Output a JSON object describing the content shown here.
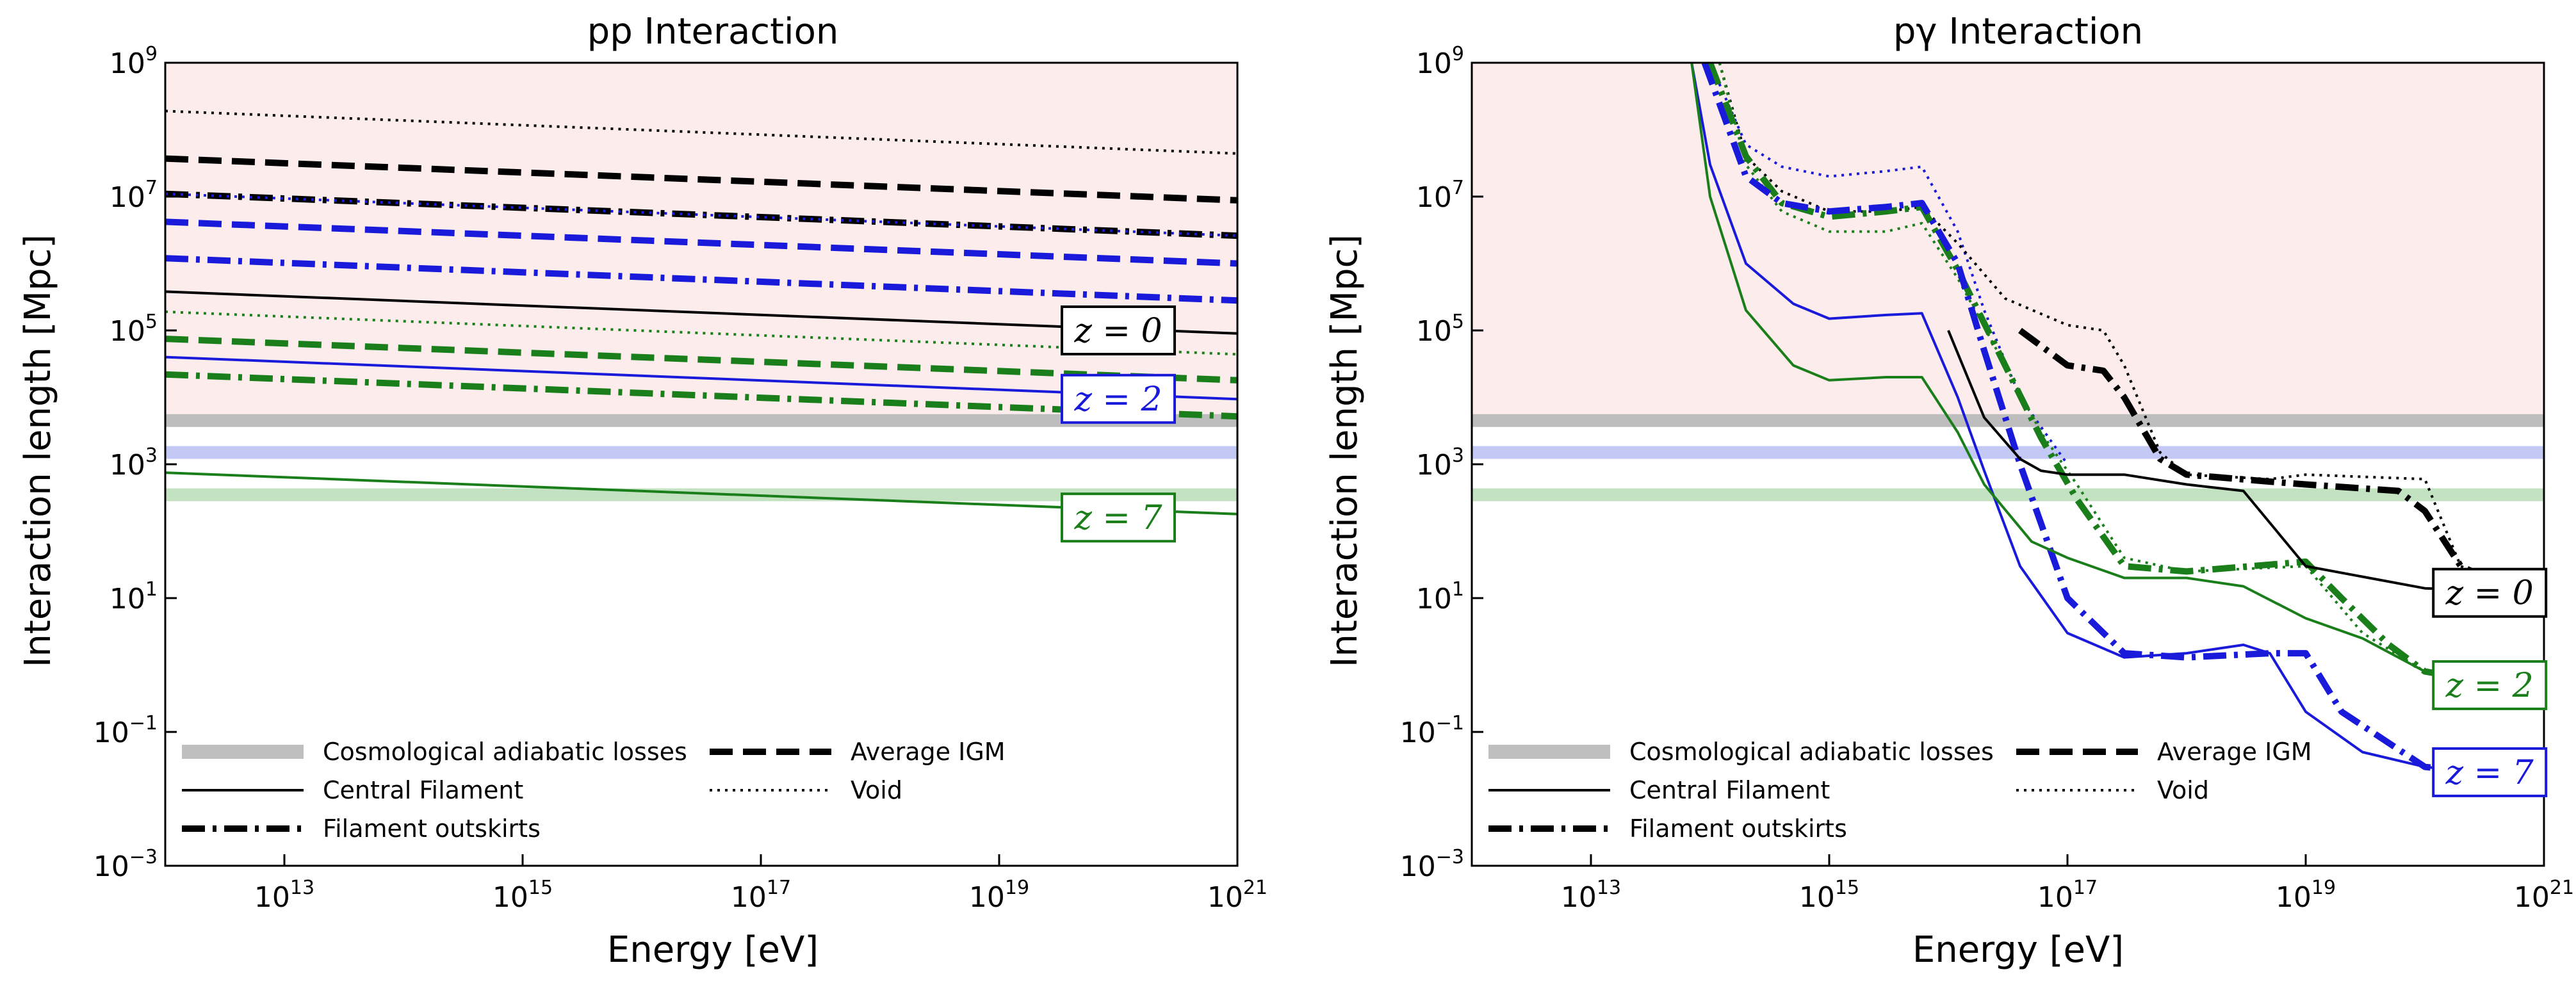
{
  "figure": {
    "shaded_region_color": "#fcecec",
    "colors": {
      "z0": "#000000",
      "z2": "#1a1adb",
      "z7": "#1a7f1a",
      "adiabatic": "#bfbfbf"
    }
  },
  "chart_data": [
    {
      "type": "line",
      "title": "pp Interaction",
      "xlabel": "Energy [eV]",
      "ylabel": "Interaction length [Mpc]",
      "x_scale": "log",
      "y_scale": "log",
      "xlim": [
        1000000000000.0,
        1e+21
      ],
      "ylim": [
        0.001,
        1000000000.0
      ],
      "x_ticks": [
        {
          "base": "10",
          "exp": "13",
          "v": 10000000000000.0
        },
        {
          "base": "10",
          "exp": "15",
          "v": 1000000000000000.0
        },
        {
          "base": "10",
          "exp": "17",
          "v": 1e+17
        },
        {
          "base": "10",
          "exp": "19",
          "v": 1e+19
        },
        {
          "base": "10",
          "exp": "21",
          "v": 1e+21
        }
      ],
      "y_ticks": [
        {
          "base": "10",
          "exp": "9",
          "v": 1000000000.0
        },
        {
          "base": "10",
          "exp": "7",
          "v": 10000000.0
        },
        {
          "base": "10",
          "exp": "5",
          "v": 100000.0
        },
        {
          "base": "10",
          "exp": "3",
          "v": 1000.0
        },
        {
          "base": "10",
          "exp": "1",
          "v": 10.0
        },
        {
          "base": "10",
          "exp": "−1",
          "v": 0.1
        },
        {
          "base": "10",
          "exp": "−3",
          "v": 0.001
        }
      ],
      "shaded_region": {
        "y_from": 4000,
        "y_to": 1000000000.0
      },
      "adiabatic_losses": [
        {
          "z": "0",
          "y": 4500,
          "color": "#bdbdbd"
        },
        {
          "z": "2",
          "y": 1500,
          "color": "#c3c8f4"
        },
        {
          "z": "7",
          "y": 350,
          "color": "#c2e2c2"
        }
      ],
      "z_labels": [
        {
          "text": "z = 0",
          "color": "#000000",
          "x": 1e+20,
          "y": 100000.0
        },
        {
          "text": "z = 2",
          "color": "#1a1adb",
          "x": 1e+20,
          "y": 9500.0
        },
        {
          "text": "z = 7",
          "color": "#1a7f1a",
          "x": 1e+20,
          "y": 160.0
        }
      ],
      "series": [
        {
          "z": "0",
          "environment": "Void",
          "color": "#000000",
          "x": [
            1000000000000.0,
            1e+21
          ],
          "y": [
            190000000.0,
            44000000.0
          ]
        },
        {
          "z": "0",
          "environment": "Average IGM",
          "color": "#000000",
          "x": [
            1000000000000.0,
            1e+21
          ],
          "y": [
            37000000.0,
            8800000.0
          ]
        },
        {
          "z": "0",
          "environment": "Filament outskirts",
          "color": "#000000",
          "x": [
            1000000000000.0,
            1e+21
          ],
          "y": [
            11000000.0,
            2600000.0
          ]
        },
        {
          "z": "0",
          "environment": "Central Filament",
          "color": "#000000",
          "x": [
            1000000000000.0,
            1e+21
          ],
          "y": [
            380000.0,
            90000.0
          ]
        },
        {
          "z": "2",
          "environment": "Void",
          "color": "#1a1adb",
          "x": [
            1000000000000.0,
            1e+21
          ],
          "y": [
            11000000.0,
            2600000.0
          ]
        },
        {
          "z": "2",
          "environment": "Average IGM",
          "color": "#1a1adb",
          "x": [
            1000000000000.0,
            1e+21
          ],
          "y": [
            4200000.0,
            1000000.0
          ]
        },
        {
          "z": "2",
          "environment": "Filament outskirts",
          "color": "#1a1adb",
          "x": [
            1000000000000.0,
            1e+21
          ],
          "y": [
            1200000.0,
            280000.0
          ]
        },
        {
          "z": "2",
          "environment": "Central Filament",
          "color": "#1a1adb",
          "x": [
            1000000000000.0,
            1e+21
          ],
          "y": [
            40000.0,
            9400.0
          ]
        },
        {
          "z": "7",
          "environment": "Void",
          "color": "#1a7f1a",
          "x": [
            1000000000000.0,
            1e+21
          ],
          "y": [
            190000.0,
            44000.0
          ]
        },
        {
          "z": "7",
          "environment": "Average IGM",
          "color": "#1a7f1a",
          "x": [
            1000000000000.0,
            1e+21
          ],
          "y": [
            75000.0,
            18000.0
          ]
        },
        {
          "z": "7",
          "environment": "Filament outskirts",
          "color": "#1a7f1a",
          "x": [
            1000000000000.0,
            1e+21
          ],
          "y": [
            22000.0,
            5200.0
          ]
        },
        {
          "z": "7",
          "environment": "Central Filament",
          "color": "#1a7f1a",
          "x": [
            1000000000000.0,
            1e+21
          ],
          "y": [
            750.0,
            180.0
          ]
        }
      ],
      "legend": {
        "placement": "lower-left",
        "entries": [
          {
            "label": "Cosmological adiabatic losses",
            "style": "band"
          },
          {
            "label": "Average IGM",
            "style": "dashed"
          },
          {
            "label": "Central Filament",
            "style": "solid"
          },
          {
            "label": "Void",
            "style": "dotted"
          },
          {
            "label": "Filament outskirts",
            "style": "dashdot"
          }
        ]
      }
    },
    {
      "type": "line",
      "title": "pγ Interaction",
      "xlabel": "Energy [eV]",
      "ylabel": "Interaction length [Mpc]",
      "x_scale": "log",
      "y_scale": "log",
      "xlim": [
        1000000000000.0,
        1e+21
      ],
      "ylim": [
        0.001,
        1000000000.0
      ],
      "x_ticks": [
        {
          "base": "10",
          "exp": "13",
          "v": 10000000000000.0
        },
        {
          "base": "10",
          "exp": "15",
          "v": 1000000000000000.0
        },
        {
          "base": "10",
          "exp": "17",
          "v": 1e+17
        },
        {
          "base": "10",
          "exp": "19",
          "v": 1e+19
        },
        {
          "base": "10",
          "exp": "21",
          "v": 1e+21
        }
      ],
      "y_ticks": [
        {
          "base": "10",
          "exp": "9",
          "v": 1000000000.0
        },
        {
          "base": "10",
          "exp": "7",
          "v": 10000000.0
        },
        {
          "base": "10",
          "exp": "5",
          "v": 100000.0
        },
        {
          "base": "10",
          "exp": "3",
          "v": 1000.0
        },
        {
          "base": "10",
          "exp": "1",
          "v": 10.0
        },
        {
          "base": "10",
          "exp": "−1",
          "v": 0.1
        },
        {
          "base": "10",
          "exp": "−3",
          "v": 0.001
        }
      ],
      "shaded_region": {
        "y_from": 4000,
        "y_to": 1000000000.0
      },
      "adiabatic_losses": [
        {
          "z": "0",
          "y": 4500,
          "color": "#bdbdbd"
        },
        {
          "z": "2",
          "y": 1500,
          "color": "#c3c8f4"
        },
        {
          "z": "7",
          "y": 350,
          "color": "#c2e2c2"
        }
      ],
      "z_labels": [
        {
          "text": "z = 0",
          "color": "#000000",
          "x": 3.5e+20,
          "y": 12
        },
        {
          "text": "z = 2",
          "color": "#1a7f1a",
          "x": 3.5e+20,
          "y": 0.5
        },
        {
          "text": "z = 7",
          "color": "#1a1adb",
          "x": 3.5e+20,
          "y": 0.025
        }
      ],
      "series": [
        {
          "z": "7",
          "environment": "Void",
          "color": "#1a1adb",
          "x": [
            100000000000000.0,
            200000000000000.0,
            400000000000000.0,
            1000000000000000.0,
            3000000000000000.0,
            6000000000000000.0,
            1.2e+16,
            2e+16,
            4e+16,
            1e+17
          ],
          "y": [
            1000000000.0,
            60000000.0,
            28000000.0,
            20000000.0,
            24000000.0,
            28000000.0,
            3000000.0,
            200000.0,
            10000.0,
            1000.0
          ]
        },
        {
          "z": "0",
          "environment": "Void",
          "color": "#000000",
          "x": [
            120000000000000.0,
            200000000000000.0,
            400000000000000.0,
            1000000000000000.0,
            3000000000000000.0,
            6000000000000000.0,
            1.2e+16,
            3e+16,
            1e+17,
            2e+17,
            3e+17,
            6e+17,
            1e+18,
            5e+18,
            1e+19,
            1e+20,
            2e+20,
            1e+21
          ],
          "y": [
            1000000000.0,
            40000000.0,
            12000000.0,
            6000000.0,
            6000000.0,
            7000000.0,
            2000000.0,
            300000.0,
            120000.0,
            100000.0,
            30000.0,
            1500.0,
            700.0,
            600.0,
            700.0,
            600.0,
            30,
            10
          ]
        },
        {
          "z": "0",
          "environment": "Filament outskirts",
          "color": "#000000",
          "x": [
            4e+16,
            1e+17,
            2e+17,
            3e+17,
            6e+17,
            1e+18,
            5e+18,
            1e+19,
            6e+19,
            1e+20,
            2e+20,
            1e+21
          ],
          "y": [
            100000.0,
            30000.0,
            25000.0,
            10000.0,
            1200.0,
            700.0,
            550.0,
            500.0,
            400.0,
            200.0,
            30,
            8
          ]
        },
        {
          "z": "2",
          "environment": "Void",
          "color": "#1a7f1a",
          "x": [
            120000000000000.0,
            200000000000000.0,
            400000000000000.0,
            1000000000000000.0,
            3000000000000000.0,
            6000000000000000.0,
            1.2e+16,
            3e+16,
            6e+16,
            1.2e+17,
            3e+17,
            1e+18,
            1e+19,
            3e+19,
            1e+20,
            5e+20,
            1e+21
          ],
          "y": [
            1000000000.0,
            30000000.0,
            6000000.0,
            3000000.0,
            3000000.0,
            4000000.0,
            600000.0,
            30000.0,
            3000.0,
            500.0,
            40,
            25,
            30,
            3,
            0.8,
            0.5,
            0.4
          ]
        },
        {
          "z": "2",
          "environment": "Filament outskirts",
          "color": "#1a7f1a",
          "x": [
            100000000000000.0,
            200000000000000.0,
            400000000000000.0,
            1000000000000000.0,
            3000000000000000.0,
            6000000000000000.0,
            1.2e+16,
            3e+16,
            6e+16,
            1.2e+17,
            3e+17,
            1e+18,
            1e+19,
            2e+19,
            5e+19,
            1e+20,
            1e+21
          ],
          "y": [
            1000000000.0,
            40000000.0,
            8000000.0,
            5000000.0,
            6000000.0,
            7000000.0,
            800000.0,
            30000.0,
            2500.0,
            300.0,
            30,
            25,
            35,
            10,
            2,
            0.8,
            0.4
          ]
        },
        {
          "z": "7",
          "environment": "Filament outskirts",
          "color": "#1a1adb",
          "x": [
            90000000000000.0,
            200000000000000.0,
            400000000000000.0,
            1000000000000000.0,
            3000000000000000.0,
            6000000000000000.0,
            1.2e+16,
            2e+16,
            4e+16,
            1e+17,
            3e+17,
            1e+18,
            5e+18,
            1e+19,
            2e+19,
            1e+20,
            1e+21
          ],
          "y": [
            1000000000.0,
            20000000.0,
            8000000.0,
            6000000.0,
            7000000.0,
            8000000.0,
            1000000.0,
            50000.0,
            1000.0,
            10,
            1.5,
            1.3,
            1.5,
            1.5,
            0.2,
            0.03,
            0.02
          ]
        },
        {
          "z": "0",
          "environment": "Central Filament",
          "color": "#000000",
          "x": [
            1e+16,
            2e+16,
            4e+16,
            6e+16,
            1e+17,
            3e+17,
            1e+18,
            3e+18,
            1e+19,
            1e+20,
            1e+21
          ],
          "y": [
            100000.0,
            5000.0,
            1200.0,
            800.0,
            700.0,
            700.0,
            500.0,
            400.0,
            30,
            14,
            12
          ]
        },
        {
          "z": "7",
          "environment": "Central Filament",
          "color": "#1a1adb",
          "x": [
            70000000000000.0,
            100000000000000.0,
            200000000000000.0,
            500000000000000.0,
            1000000000000000.0,
            3000000000000000.0,
            6000000000000000.0,
            1.2e+16,
            2e+16,
            4e+16,
            1e+17,
            3e+17,
            1e+18,
            3e+18,
            5e+18,
            1e+19,
            3e+19,
            1e+20,
            1e+21
          ],
          "y": [
            1000000000.0,
            30000000.0,
            1000000.0,
            250000.0,
            150000.0,
            170000.0,
            180000.0,
            10000.0,
            800.0,
            30,
            3,
            1.3,
            1.5,
            2,
            1.5,
            0.2,
            0.05,
            0.03,
            0.02
          ]
        },
        {
          "z": "2",
          "environment": "Central Filament",
          "color": "#1a7f1a",
          "x": [
            70000000000000.0,
            100000000000000.0,
            200000000000000.0,
            500000000000000.0,
            1000000000000000.0,
            3000000000000000.0,
            6000000000000000.0,
            1.2e+16,
            2e+16,
            5e+16,
            1e+17,
            3e+17,
            1e+18,
            3e+18,
            1e+19,
            3e+19,
            1e+20,
            1e+21
          ],
          "y": [
            1000000000.0,
            10000000.0,
            200000.0,
            30000.0,
            18000.0,
            20000.0,
            20000.0,
            3000.0,
            500.0,
            70,
            40,
            20,
            20,
            15,
            5,
            2.5,
            0.8,
            0.6
          ]
        }
      ],
      "legend": {
        "placement": "lower-left",
        "entries": [
          {
            "label": "Cosmological adiabatic losses",
            "style": "band"
          },
          {
            "label": "Average IGM",
            "style": "dashed"
          },
          {
            "label": "Central Filament",
            "style": "solid"
          },
          {
            "label": "Void",
            "style": "dotted"
          },
          {
            "label": "Filament outskirts",
            "style": "dashdot"
          }
        ]
      }
    }
  ]
}
